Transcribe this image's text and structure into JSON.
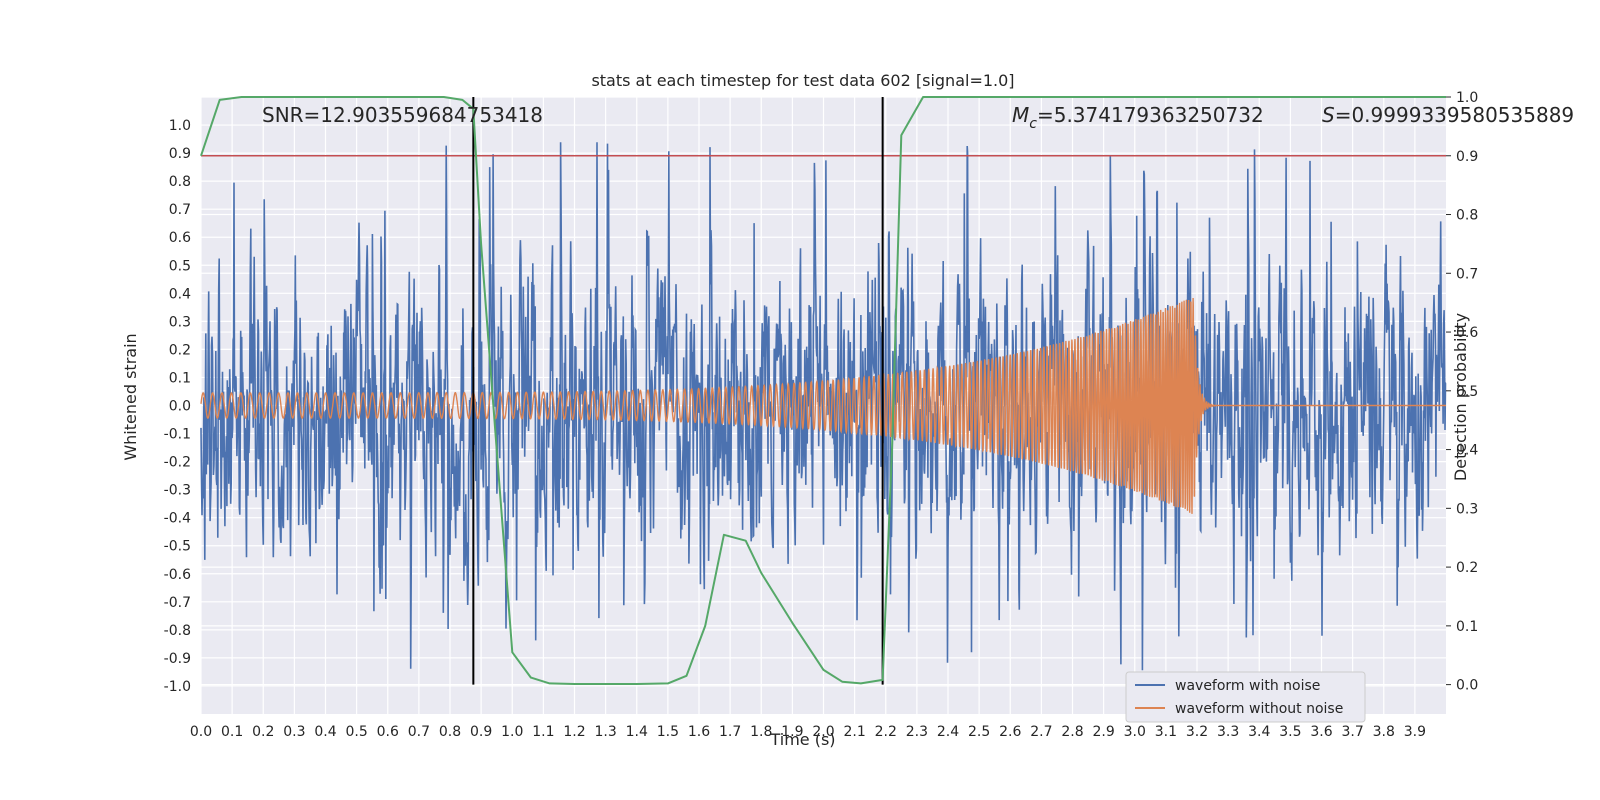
{
  "chart_data": {
    "type": "line",
    "title": "stats at each timestep for test data 602 [signal=1.0]",
    "xlabel": "Time (s)",
    "ylabel": "Whitened strain",
    "y2label": "Detection probability",
    "xlim": [
      0.0,
      4.0
    ],
    "ylim": [
      -1.1,
      1.1
    ],
    "y2lim": [
      -0.05,
      1.0
    ],
    "x_ticks": [
      "0.0",
      "0.1",
      "0.2",
      "0.3",
      "0.4",
      "0.5",
      "0.6",
      "0.7",
      "0.8",
      "0.9",
      "1.0",
      "1.1",
      "1.2",
      "1.3",
      "1.4",
      "1.5",
      "1.6",
      "1.7",
      "1.8",
      "1.9",
      "2.0",
      "2.1",
      "2.2",
      "2.3",
      "2.4",
      "2.5",
      "2.6",
      "2.7",
      "2.8",
      "2.9",
      "3.0",
      "3.1",
      "3.2",
      "3.3",
      "3.4",
      "3.5",
      "3.6",
      "3.7",
      "3.8",
      "3.9"
    ],
    "y_ticks": [
      "1.0",
      "0.9",
      "0.8",
      "0.7",
      "0.6",
      "0.5",
      "0.4",
      "0.3",
      "0.2",
      "0.1",
      "0.0",
      "-0.1",
      "-0.2",
      "-0.3",
      "-0.4",
      "-0.5",
      "-0.6",
      "-0.7",
      "-0.8",
      "-0.9",
      "-1.0"
    ],
    "y2_ticks": [
      "1.0",
      "0.9",
      "0.8",
      "0.7",
      "0.6",
      "0.5",
      "0.4",
      "0.3",
      "0.2",
      "0.1",
      "0.0"
    ],
    "annotations": {
      "snr": "SNR=12.903559684753418",
      "mc_symbol": "M",
      "mc_sub": "c",
      "mc_value": "=5.374179363250732",
      "s_symbol": "S",
      "s_value": "=0.9999339580535889"
    },
    "threshold": {
      "axis": "y2",
      "value": 0.9,
      "color": "#c44e52"
    },
    "vlines": [
      0.875,
      2.19
    ],
    "series": [
      {
        "name": "waveform with noise",
        "color": "#4c72b0",
        "axis": "y",
        "noise_amplitude": 0.95,
        "seed": 602
      },
      {
        "name": "waveform without noise",
        "color": "#dd8452",
        "axis": "y",
        "type": "chirp",
        "f0": 33,
        "f_merge": 140,
        "t_merge": 3.19,
        "amp_start": 0.045,
        "amp_peak": 0.39
      },
      {
        "name": "detection probability",
        "color": "#55a868",
        "axis": "y2",
        "x": [
          0.0,
          0.06,
          0.13,
          0.2,
          0.3,
          0.5,
          0.7,
          0.78,
          0.84,
          0.875,
          0.9,
          0.95,
          1.0,
          1.06,
          1.12,
          1.2,
          1.3,
          1.4,
          1.5,
          1.56,
          1.62,
          1.68,
          1.75,
          1.8,
          1.9,
          2.0,
          2.06,
          2.12,
          2.19,
          2.22,
          2.25,
          2.32,
          2.5,
          3.0,
          3.5,
          4.0
        ],
        "y": [
          0.9,
          0.995,
          1.0,
          1.0,
          1.0,
          1.0,
          1.0,
          1.0,
          0.995,
          0.98,
          0.75,
          0.4,
          0.055,
          0.012,
          0.002,
          0.001,
          0.001,
          0.001,
          0.002,
          0.015,
          0.1,
          0.255,
          0.245,
          0.19,
          0.105,
          0.025,
          0.005,
          0.002,
          0.008,
          0.4,
          0.935,
          1.0,
          1.0,
          1.0,
          1.0,
          1.0
        ]
      }
    ],
    "legend": {
      "placement": "bottom-right",
      "entries": [
        "waveform with noise",
        "waveform without noise"
      ]
    }
  }
}
